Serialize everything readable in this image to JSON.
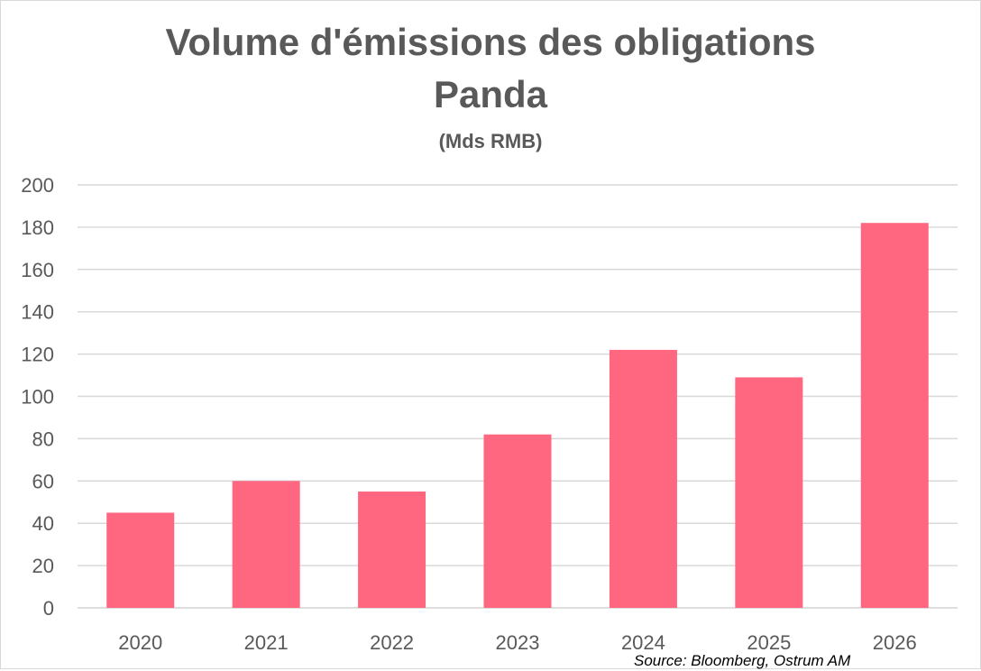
{
  "chart_data": {
    "type": "bar",
    "title_line1": "Volume d'émissions des obligations",
    "title_line2": "Panda",
    "subtitle": "(Mds RMB)",
    "categories": [
      "2020",
      "2021",
      "2022",
      "2023",
      "2024",
      "2025",
      "2026"
    ],
    "values": [
      45,
      60,
      55,
      82,
      122,
      109,
      182
    ],
    "ylim": [
      0,
      200
    ],
    "yticks": [
      0,
      20,
      40,
      60,
      80,
      100,
      120,
      140,
      160,
      180,
      200
    ],
    "grid": true,
    "legend": "none",
    "bar_color": "#FF6680",
    "grid_color": "#d9d9d9",
    "text_color": "#595959",
    "source": "Source: Bloomberg, Ostrum AM"
  }
}
